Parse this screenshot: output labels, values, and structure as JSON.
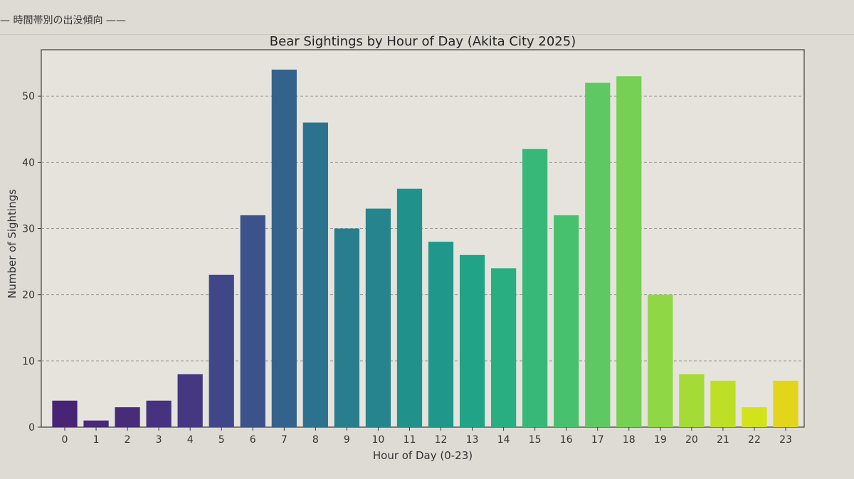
{
  "section_heading": "— 時間帯別の出没傾向 ——",
  "chart_data": {
    "type": "bar",
    "title": "Bear Sightings by Hour of Day (Akita City 2025)",
    "xlabel": "Hour of Day (0-23)",
    "ylabel": "Number of Sightings",
    "categories": [
      "0",
      "1",
      "2",
      "3",
      "4",
      "5",
      "6",
      "7",
      "8",
      "9",
      "10",
      "11",
      "12",
      "13",
      "14",
      "15",
      "16",
      "17",
      "18",
      "19",
      "20",
      "21",
      "22",
      "23"
    ],
    "values": [
      4,
      1,
      3,
      4,
      8,
      23,
      32,
      54,
      46,
      30,
      33,
      36,
      28,
      26,
      24,
      42,
      32,
      52,
      53,
      20,
      8,
      7,
      3,
      7
    ],
    "ylim": [
      0,
      57
    ],
    "yticks": [
      0,
      10,
      20,
      30,
      40,
      50
    ],
    "grid": "y-dashed",
    "colormap": "viridis",
    "colors": [
      "#482475",
      "#482878",
      "#472c7a",
      "#46327e",
      "#453781",
      "#3f4788",
      "#3b528b",
      "#33638d",
      "#2c728e",
      "#287d8e",
      "#25848e",
      "#21918c",
      "#1f988b",
      "#20a386",
      "#28ae80",
      "#37b878",
      "#48c16e",
      "#5ec962",
      "#75d054",
      "#8fd744",
      "#a5db36",
      "#bddf26",
      "#d2e21b",
      "#e2d51a"
    ]
  }
}
